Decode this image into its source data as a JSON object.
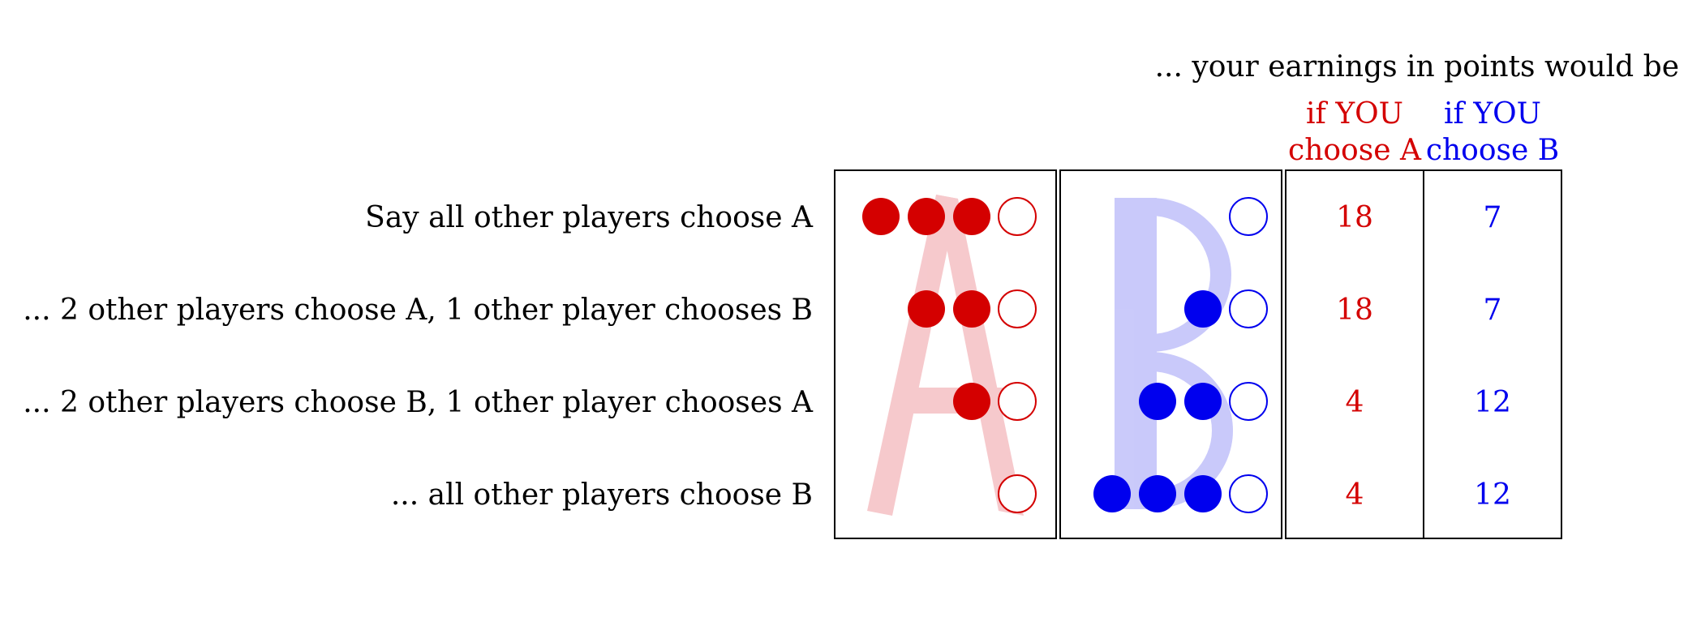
{
  "header": {
    "earnings_caption": "... your earnings in points would be",
    "col_a_line1": "if YOU",
    "col_a_line2": "choose A",
    "col_b_line1": "if YOU",
    "col_b_line2": "choose B"
  },
  "rows": [
    {
      "label": "Say all other players choose A",
      "others_a": 3,
      "others_b": 0,
      "earn_a": "18",
      "earn_b": "7"
    },
    {
      "label": "... 2 other players choose A, 1 other player chooses B",
      "others_a": 2,
      "others_b": 1,
      "earn_a": "18",
      "earn_b": "7"
    },
    {
      "label": "... 2 other players choose B, 1 other player chooses A",
      "others_a": 1,
      "others_b": 2,
      "earn_a": "4",
      "earn_b": "12"
    },
    {
      "label": "... all other players choose B",
      "others_a": 0,
      "others_b": 3,
      "earn_a": "4",
      "earn_b": "12"
    }
  ],
  "colors": {
    "a": "#d40000",
    "b": "#0000ee",
    "a_letter": "#f5c0c4",
    "b_letter": "#c4c4fa",
    "border": "#000000"
  }
}
